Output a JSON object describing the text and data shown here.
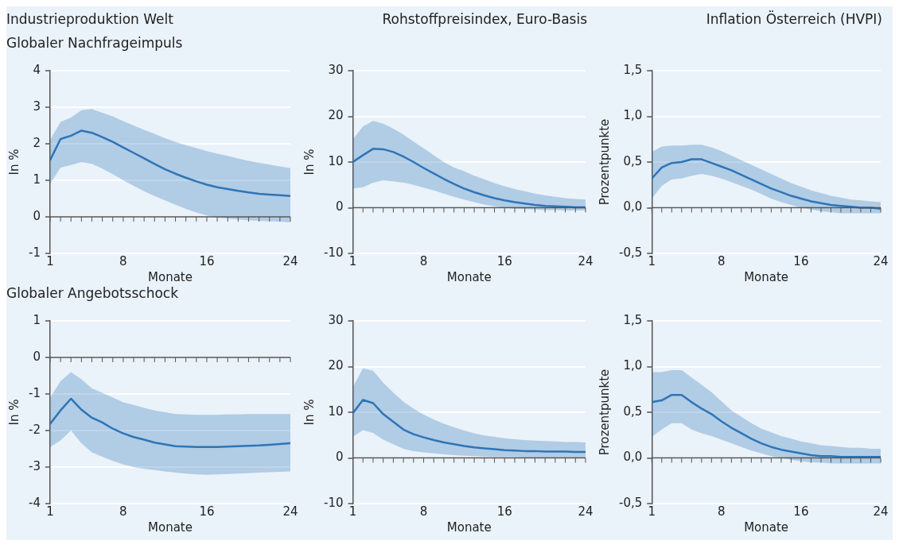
{
  "chart_data": [
    {
      "type": "line",
      "title": "Industrieproduktion Welt",
      "subtitle": "Globaler Nachfrageimpuls",
      "xlabel": "Monate",
      "ylabel": "In %",
      "x": [
        1,
        2,
        3,
        4,
        5,
        6,
        7,
        8,
        9,
        10,
        11,
        12,
        13,
        14,
        15,
        16,
        17,
        18,
        19,
        20,
        21,
        22,
        23,
        24
      ],
      "xlim": [
        1,
        24
      ],
      "xticks": [
        1,
        8,
        16,
        24
      ],
      "ylim": [
        -1,
        4
      ],
      "yticks": [
        -1,
        0,
        1,
        2,
        3,
        4
      ],
      "grid": "y",
      "marker": "none",
      "line_style": "solid",
      "series": [
        {
          "color": "#2e75b6",
          "values": [
            1.55,
            2.13,
            2.22,
            2.36,
            2.3,
            2.18,
            2.05,
            1.9,
            1.75,
            1.6,
            1.45,
            1.3,
            1.18,
            1.07,
            0.97,
            0.88,
            0.81,
            0.76,
            0.71,
            0.67,
            0.63,
            0.61,
            0.59,
            0.57
          ],
          "upper": [
            2.1,
            2.6,
            2.72,
            2.92,
            2.95,
            2.85,
            2.75,
            2.62,
            2.5,
            2.38,
            2.27,
            2.15,
            2.05,
            1.96,
            1.88,
            1.8,
            1.73,
            1.67,
            1.6,
            1.53,
            1.48,
            1.43,
            1.38,
            1.33
          ],
          "lower": [
            0.9,
            1.35,
            1.42,
            1.5,
            1.45,
            1.32,
            1.17,
            1.0,
            0.85,
            0.7,
            0.57,
            0.45,
            0.33,
            0.22,
            0.12,
            0.04,
            -0.02,
            -0.05,
            -0.07,
            -0.09,
            -0.11,
            -0.12,
            -0.13,
            -0.15
          ]
        }
      ]
    },
    {
      "type": "line",
      "title": "Rohstoffpreisindex, Euro-Basis",
      "xlabel": "Monate",
      "ylabel": "In %",
      "x": [
        1,
        2,
        3,
        4,
        5,
        6,
        7,
        8,
        9,
        10,
        11,
        12,
        13,
        14,
        15,
        16,
        17,
        18,
        19,
        20,
        21,
        22,
        23,
        24
      ],
      "xlim": [
        1,
        24
      ],
      "xticks": [
        1,
        8,
        16,
        24
      ],
      "ylim": [
        -10,
        30
      ],
      "yticks": [
        -10,
        0,
        10,
        20,
        30
      ],
      "grid": "y",
      "marker": "none",
      "line_style": "solid",
      "series": [
        {
          "color": "#2e75b6",
          "values": [
            10,
            11.5,
            12.9,
            12.8,
            12.2,
            11.2,
            10,
            8.7,
            7.5,
            6.3,
            5.2,
            4.2,
            3.4,
            2.7,
            2.1,
            1.6,
            1.2,
            0.9,
            0.6,
            0.4,
            0.3,
            0.2,
            0.1,
            0.1
          ],
          "upper": [
            15,
            17.8,
            19,
            18.4,
            17.3,
            16,
            14.5,
            13,
            11.5,
            10,
            8.8,
            8,
            7,
            6.2,
            5.4,
            4.7,
            4.1,
            3.6,
            3.1,
            2.7,
            2.4,
            2.1,
            1.9,
            1.8
          ],
          "lower": [
            4.2,
            4.5,
            5.5,
            6,
            5.8,
            5.5,
            5,
            4.4,
            3.8,
            3.1,
            2.4,
            1.8,
            1.2,
            0.7,
            0.3,
            0,
            -0.2,
            -0.3,
            -0.4,
            -0.5,
            -0.5,
            -0.6,
            -0.6,
            -0.6
          ]
        }
      ]
    },
    {
      "type": "line",
      "title": "Inflation Österreich (HVPI)",
      "xlabel": "Monate",
      "ylabel": "Prozentpunkte",
      "x": [
        1,
        2,
        3,
        4,
        5,
        6,
        7,
        8,
        9,
        10,
        11,
        12,
        13,
        14,
        15,
        16,
        17,
        18,
        19,
        20,
        21,
        22,
        23,
        24
      ],
      "xlim": [
        1,
        24
      ],
      "xticks": [
        1,
        8,
        16,
        24
      ],
      "ylim": [
        -0.5,
        1.5
      ],
      "yticks": [
        {
          "value": -0.5,
          "label": "-0,5"
        },
        {
          "value": 0,
          "label": "0,0"
        },
        {
          "value": 0.5,
          "label": "0,5"
        },
        {
          "value": 1,
          "label": "1,0"
        },
        {
          "value": 1.5,
          "label": "1,5"
        }
      ],
      "grid": "y",
      "marker": "none",
      "line_style": "solid",
      "series": [
        {
          "color": "#2e75b6",
          "values": [
            0.32,
            0.44,
            0.49,
            0.5,
            0.53,
            0.53,
            0.49,
            0.45,
            0.41,
            0.36,
            0.31,
            0.26,
            0.21,
            0.17,
            0.13,
            0.1,
            0.07,
            0.05,
            0.03,
            0.02,
            0.01,
            0.0,
            0.0,
            -0.01
          ],
          "upper": [
            0.61,
            0.67,
            0.68,
            0.68,
            0.69,
            0.69,
            0.66,
            0.62,
            0.57,
            0.52,
            0.47,
            0.42,
            0.37,
            0.32,
            0.27,
            0.23,
            0.19,
            0.16,
            0.13,
            0.11,
            0.09,
            0.08,
            0.07,
            0.06
          ],
          "lower": [
            0.1,
            0.24,
            0.31,
            0.32,
            0.35,
            0.37,
            0.35,
            0.32,
            0.28,
            0.24,
            0.2,
            0.15,
            0.1,
            0.06,
            0.03,
            0.0,
            -0.02,
            -0.04,
            -0.05,
            -0.06,
            -0.06,
            -0.06,
            -0.06,
            -0.06
          ]
        }
      ]
    },
    {
      "type": "line",
      "subtitle": "Globaler Angebotsschock",
      "xlabel": "Monate",
      "ylabel": "In %",
      "x": [
        1,
        2,
        3,
        4,
        5,
        6,
        7,
        8,
        9,
        10,
        11,
        12,
        13,
        14,
        15,
        16,
        17,
        18,
        19,
        20,
        21,
        22,
        23,
        24
      ],
      "xlim": [
        1,
        24
      ],
      "xticks": [
        1,
        8,
        16,
        24
      ],
      "ylim": [
        -4,
        1
      ],
      "yticks": [
        -4,
        -3,
        -2,
        -1,
        0,
        1
      ],
      "grid": "y",
      "marker": "none",
      "line_style": "solid",
      "series": [
        {
          "color": "#2e75b6",
          "values": [
            -1.82,
            -1.45,
            -1.13,
            -1.43,
            -1.65,
            -1.78,
            -1.95,
            -2.08,
            -2.18,
            -2.25,
            -2.33,
            -2.38,
            -2.43,
            -2.44,
            -2.45,
            -2.45,
            -2.45,
            -2.44,
            -2.43,
            -2.42,
            -2.41,
            -2.39,
            -2.37,
            -2.35
          ],
          "upper": [
            -1.1,
            -0.65,
            -0.4,
            -0.6,
            -0.85,
            -0.97,
            -1.1,
            -1.23,
            -1.3,
            -1.38,
            -1.45,
            -1.5,
            -1.55,
            -1.56,
            -1.57,
            -1.57,
            -1.57,
            -1.56,
            -1.56,
            -1.55,
            -1.55,
            -1.55,
            -1.55,
            -1.55
          ],
          "lower": [
            -2.45,
            -2.27,
            -2.0,
            -2.35,
            -2.6,
            -2.72,
            -2.83,
            -2.93,
            -3.0,
            -3.05,
            -3.08,
            -3.12,
            -3.15,
            -3.18,
            -3.2,
            -3.21,
            -3.2,
            -3.19,
            -3.18,
            -3.17,
            -3.15,
            -3.14,
            -3.13,
            -3.12
          ]
        }
      ]
    },
    {
      "type": "line",
      "xlabel": "Monate",
      "ylabel": "In %",
      "x": [
        1,
        2,
        3,
        4,
        5,
        6,
        7,
        8,
        9,
        10,
        11,
        12,
        13,
        14,
        15,
        16,
        17,
        18,
        19,
        20,
        21,
        22,
        23,
        24
      ],
      "xlim": [
        1,
        24
      ],
      "xticks": [
        1,
        8,
        16,
        24
      ],
      "ylim": [
        -10,
        30
      ],
      "yticks": [
        -10,
        0,
        10,
        20,
        30
      ],
      "grid": "y",
      "marker": "none",
      "line_style": "solid",
      "series": [
        {
          "color": "#2e75b6",
          "values": [
            9.8,
            12.7,
            12,
            9.6,
            7.9,
            6.2,
            5.2,
            4.5,
            3.9,
            3.4,
            3.0,
            2.6,
            2.3,
            2.1,
            1.9,
            1.7,
            1.6,
            1.5,
            1.5,
            1.4,
            1.4,
            1.4,
            1.3,
            1.3
          ],
          "upper": [
            15.5,
            19.6,
            19.1,
            16.5,
            14.3,
            12.3,
            10.8,
            9.5,
            8.4,
            7.5,
            6.7,
            6.0,
            5.4,
            4.9,
            4.6,
            4.3,
            4.1,
            3.9,
            3.8,
            3.7,
            3.6,
            3.5,
            3.5,
            3.4
          ],
          "lower": [
            4.6,
            6.1,
            5.5,
            4.0,
            3.0,
            2.0,
            1.5,
            1.2,
            1.0,
            0.8,
            0.6,
            0.5,
            0.4,
            0.3,
            0.2,
            0.2,
            0.2,
            0.1,
            0.1,
            0.1,
            0.1,
            0.1,
            0.1,
            0.1
          ]
        }
      ]
    },
    {
      "type": "line",
      "xlabel": "Monate",
      "ylabel": "Prozentpunkte",
      "x": [
        1,
        2,
        3,
        4,
        5,
        6,
        7,
        8,
        9,
        10,
        11,
        12,
        13,
        14,
        15,
        16,
        17,
        18,
        19,
        20,
        21,
        22,
        23,
        24
      ],
      "xlim": [
        1,
        24
      ],
      "xticks": [
        1,
        8,
        16,
        24
      ],
      "ylim": [
        -0.5,
        1.5
      ],
      "yticks": [
        {
          "value": -0.5,
          "label": "-0,5"
        },
        {
          "value": 0,
          "label": "0,0"
        },
        {
          "value": 0.5,
          "label": "0,5"
        },
        {
          "value": 1,
          "label": "1,0"
        },
        {
          "value": 1.5,
          "label": "1,5"
        }
      ],
      "grid": "y",
      "marker": "none",
      "line_style": "solid",
      "series": [
        {
          "color": "#2e75b6",
          "values": [
            0.61,
            0.63,
            0.69,
            0.69,
            0.61,
            0.54,
            0.48,
            0.4,
            0.33,
            0.27,
            0.21,
            0.16,
            0.12,
            0.09,
            0.07,
            0.05,
            0.03,
            0.02,
            0.02,
            0.01,
            0.01,
            0.01,
            0.01,
            0.01
          ],
          "upper": [
            0.94,
            0.94,
            0.96,
            0.96,
            0.88,
            0.8,
            0.72,
            0.62,
            0.52,
            0.45,
            0.38,
            0.32,
            0.28,
            0.24,
            0.21,
            0.18,
            0.16,
            0.14,
            0.13,
            0.12,
            0.11,
            0.11,
            0.1,
            0.1
          ],
          "lower": [
            0.23,
            0.31,
            0.38,
            0.38,
            0.31,
            0.27,
            0.24,
            0.2,
            0.16,
            0.12,
            0.08,
            0.05,
            0.02,
            0.0,
            -0.02,
            -0.04,
            -0.05,
            -0.05,
            -0.06,
            -0.06,
            -0.06,
            -0.06,
            -0.06,
            -0.06
          ]
        }
      ]
    }
  ]
}
